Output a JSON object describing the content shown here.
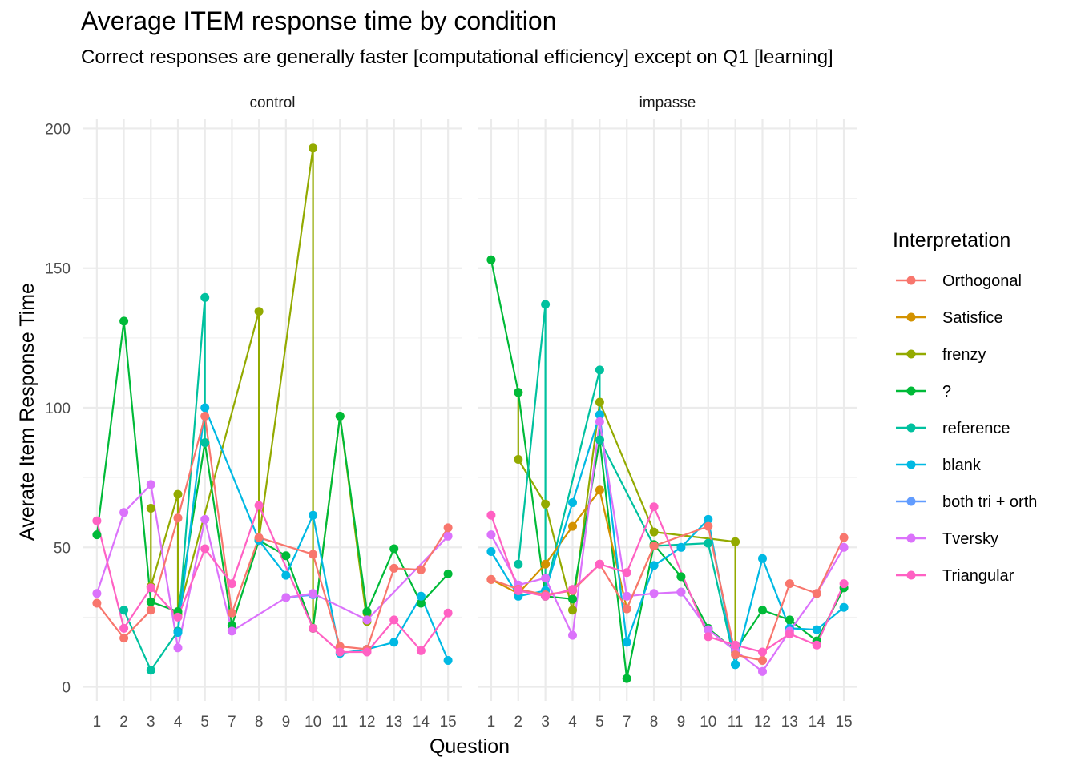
{
  "chart_data": {
    "type": "line",
    "title": "Average ITEM response time by condition",
    "subtitle": "Correct responses are generally faster [computational efficiency] except on Q1 [learning]",
    "xlabel": "Question",
    "ylabel": "Averate Item Response Time",
    "ylim": [
      -5,
      205
    ],
    "yticks": [
      0,
      50,
      100,
      150,
      200
    ],
    "categories": [
      "1",
      "2",
      "3",
      "4",
      "5",
      "7",
      "8",
      "9",
      "10",
      "11",
      "12",
      "13",
      "14",
      "15"
    ],
    "grid": true,
    "legend": {
      "title": "Interpretation",
      "position": "right",
      "entries": [
        "Orthogonal",
        "Satisfice",
        "frenzy",
        "?",
        "reference",
        "blank",
        "both tri + orth",
        "Tversky",
        "Triangular"
      ]
    },
    "colors": {
      "Orthogonal": "#F8766D",
      "Satisfice": "#D39200",
      "frenzy": "#93AA00",
      "?": "#00BA38",
      "reference": "#00C19F",
      "blank": "#00B9E3",
      "both tri + orth": "#619CFF",
      "Tversky": "#DB72FB",
      "Triangular": "#FF61C3"
    },
    "panels": [
      {
        "name": "control",
        "series": [
          {
            "name": "frenzy",
            "points": [
              [
                "3",
                64
              ],
              [
                "3",
                36
              ],
              [
                "4",
                69
              ],
              [
                "4",
                26
              ],
              [
                "8",
                134.5
              ],
              [
                "8",
                53
              ],
              [
                "10",
                193
              ],
              [
                "10",
                21
              ],
              [
                "11",
                97
              ],
              [
                "12",
                23.5
              ],
              [
                "12",
                26.5
              ]
            ]
          },
          {
            "name": "?",
            "points": [
              [
                "1",
                54.5
              ],
              [
                "2",
                131
              ],
              [
                "3",
                30.5
              ],
              [
                "4",
                27
              ],
              [
                "5",
                87.5
              ],
              [
                "7",
                22
              ],
              [
                "8",
                52.5
              ],
              [
                "9",
                47
              ],
              [
                "10",
                21
              ],
              [
                "11",
                97
              ],
              [
                "12",
                27
              ],
              [
                "13",
                49.5
              ],
              [
                "14",
                30
              ],
              [
                "15",
                40.5
              ]
            ]
          },
          {
            "name": "reference",
            "points": [
              [
                "2",
                27.5
              ],
              [
                "3",
                6
              ],
              [
                "4",
                20
              ],
              [
                "5",
                139.5
              ],
              [
                "5",
                87.5
              ]
            ]
          },
          {
            "name": "blank",
            "points": [
              [
                "4",
                19.5
              ],
              [
                "5",
                100
              ],
              [
                "8",
                52.5
              ],
              [
                "9",
                40
              ],
              [
                "10",
                61.5
              ],
              [
                "11",
                12
              ],
              [
                "12",
                13.5
              ],
              [
                "13",
                16
              ],
              [
                "14",
                32.5
              ],
              [
                "15",
                9.5
              ]
            ]
          },
          {
            "name": "both tri + orth",
            "points": [
              [
                "9",
                32
              ],
              [
                "10",
                33
              ]
            ]
          },
          {
            "name": "Tversky",
            "points": [
              [
                "1",
                33.5
              ],
              [
                "2",
                62.5
              ],
              [
                "3",
                72.5
              ],
              [
                "4",
                14
              ],
              [
                "5",
                60
              ],
              [
                "7",
                20
              ],
              [
                "9",
                32
              ],
              [
                "10",
                33.5
              ],
              [
                "12",
                24
              ],
              [
                "15",
                54
              ]
            ]
          },
          {
            "name": "Orthogonal",
            "points": [
              [
                "1",
                30
              ],
              [
                "2",
                17.5
              ],
              [
                "3",
                27.5
              ],
              [
                "4",
                60.5
              ],
              [
                "5",
                97
              ],
              [
                "7",
                26.5
              ],
              [
                "8",
                53.5
              ],
              [
                "10",
                47.5
              ],
              [
                "11",
                14.5
              ],
              [
                "12",
                13.5
              ],
              [
                "13",
                42.5
              ],
              [
                "14",
                42
              ],
              [
                "15",
                57
              ]
            ]
          },
          {
            "name": "Triangular",
            "points": [
              [
                "1",
                59.5
              ],
              [
                "2",
                21
              ],
              [
                "3",
                35.5
              ],
              [
                "4",
                25
              ],
              [
                "5",
                49.5
              ],
              [
                "7",
                37
              ],
              [
                "8",
                65
              ],
              [
                "10",
                21
              ],
              [
                "11",
                12.5
              ],
              [
                "12",
                12.5
              ],
              [
                "13",
                24
              ],
              [
                "14",
                13
              ],
              [
                "15",
                26.5
              ]
            ]
          }
        ]
      },
      {
        "name": "impasse",
        "series": [
          {
            "name": "frenzy",
            "points": [
              [
                "2",
                105.5
              ],
              [
                "2",
                81.5
              ],
              [
                "3",
                65.5
              ],
              [
                "4",
                27.5
              ],
              [
                "5",
                102
              ],
              [
                "8",
                55.5
              ],
              [
                "11",
                52
              ],
              [
                "11",
                12.5
              ]
            ]
          },
          {
            "name": "?",
            "points": [
              [
                "1",
                153
              ],
              [
                "2",
                105.5
              ],
              [
                "3",
                32.5
              ],
              [
                "4",
                31.5
              ],
              [
                "5",
                88.5
              ],
              [
                "7",
                3
              ],
              [
                "8",
                51
              ],
              [
                "9",
                39.5
              ],
              [
                "10",
                21
              ],
              [
                "11",
                13
              ],
              [
                "12",
                27.5
              ],
              [
                "13",
                24
              ],
              [
                "14",
                16.5
              ],
              [
                "15",
                35.5
              ]
            ]
          },
          {
            "name": "reference",
            "points": [
              [
                "2",
                44
              ],
              [
                "3",
                137
              ],
              [
                "3",
                34.5
              ],
              [
                "5",
                113.5
              ],
              [
                "5",
                88.5
              ],
              [
                "8",
                50.5
              ],
              [
                "10",
                51.5
              ],
              [
                "11",
                8
              ]
            ]
          },
          {
            "name": "Satisfice",
            "points": [
              [
                "1",
                38.5
              ],
              [
                "2",
                33.5
              ],
              [
                "3",
                44
              ],
              [
                "4",
                57.5
              ],
              [
                "5",
                70.5
              ],
              [
                "7",
                28
              ],
              [
                "8",
                50.5
              ]
            ]
          },
          {
            "name": "blank",
            "points": [
              [
                "1",
                48.5
              ],
              [
                "2",
                32.5
              ],
              [
                "3",
                34.5
              ],
              [
                "4",
                66
              ],
              [
                "5",
                97.5
              ],
              [
                "7",
                16
              ],
              [
                "8",
                43.5
              ],
              [
                "9",
                50
              ],
              [
                "10",
                60
              ],
              [
                "11",
                8
              ],
              [
                "12",
                46
              ],
              [
                "13",
                21
              ],
              [
                "14",
                20.5
              ],
              [
                "15",
                28.5
              ]
            ]
          },
          {
            "name": "both tri + orth",
            "points": [
              [
                "9",
                34
              ],
              [
                "10",
                20.5
              ]
            ]
          },
          {
            "name": "Tversky",
            "points": [
              [
                "1",
                54.5
              ],
              [
                "2",
                36.5
              ],
              [
                "3",
                39
              ],
              [
                "4",
                18.5
              ],
              [
                "5",
                95
              ],
              [
                "7",
                32.5
              ],
              [
                "8",
                33.5
              ],
              [
                "9",
                34
              ],
              [
                "10",
                20.5
              ],
              [
                "11",
                13
              ],
              [
                "12",
                5.5
              ],
              [
                "13",
                20
              ],
              [
                "14",
                33.5
              ],
              [
                "15",
                50
              ]
            ]
          },
          {
            "name": "Orthogonal",
            "points": [
              [
                "1",
                38.5
              ],
              [
                "2",
                35
              ],
              [
                "3",
                33
              ],
              [
                "4",
                34.5
              ],
              [
                "5",
                44
              ],
              [
                "7",
                28
              ],
              [
                "8",
                50.5
              ],
              [
                "10",
                57.5
              ],
              [
                "11",
                11.5
              ],
              [
                "12",
                9.5
              ],
              [
                "13",
                37
              ],
              [
                "14",
                33.5
              ],
              [
                "15",
                53.5
              ]
            ]
          },
          {
            "name": "Triangular",
            "points": [
              [
                "1",
                61.5
              ],
              [
                "2",
                34.5
              ],
              [
                "3",
                32.5
              ],
              [
                "4",
                35
              ],
              [
                "5",
                44
              ],
              [
                "7",
                41
              ],
              [
                "8",
                64.5
              ],
              [
                "10",
                18
              ],
              [
                "11",
                15
              ],
              [
                "12",
                12.5
              ],
              [
                "13",
                19
              ],
              [
                "14",
                15
              ],
              [
                "15",
                37
              ]
            ]
          }
        ]
      }
    ]
  }
}
